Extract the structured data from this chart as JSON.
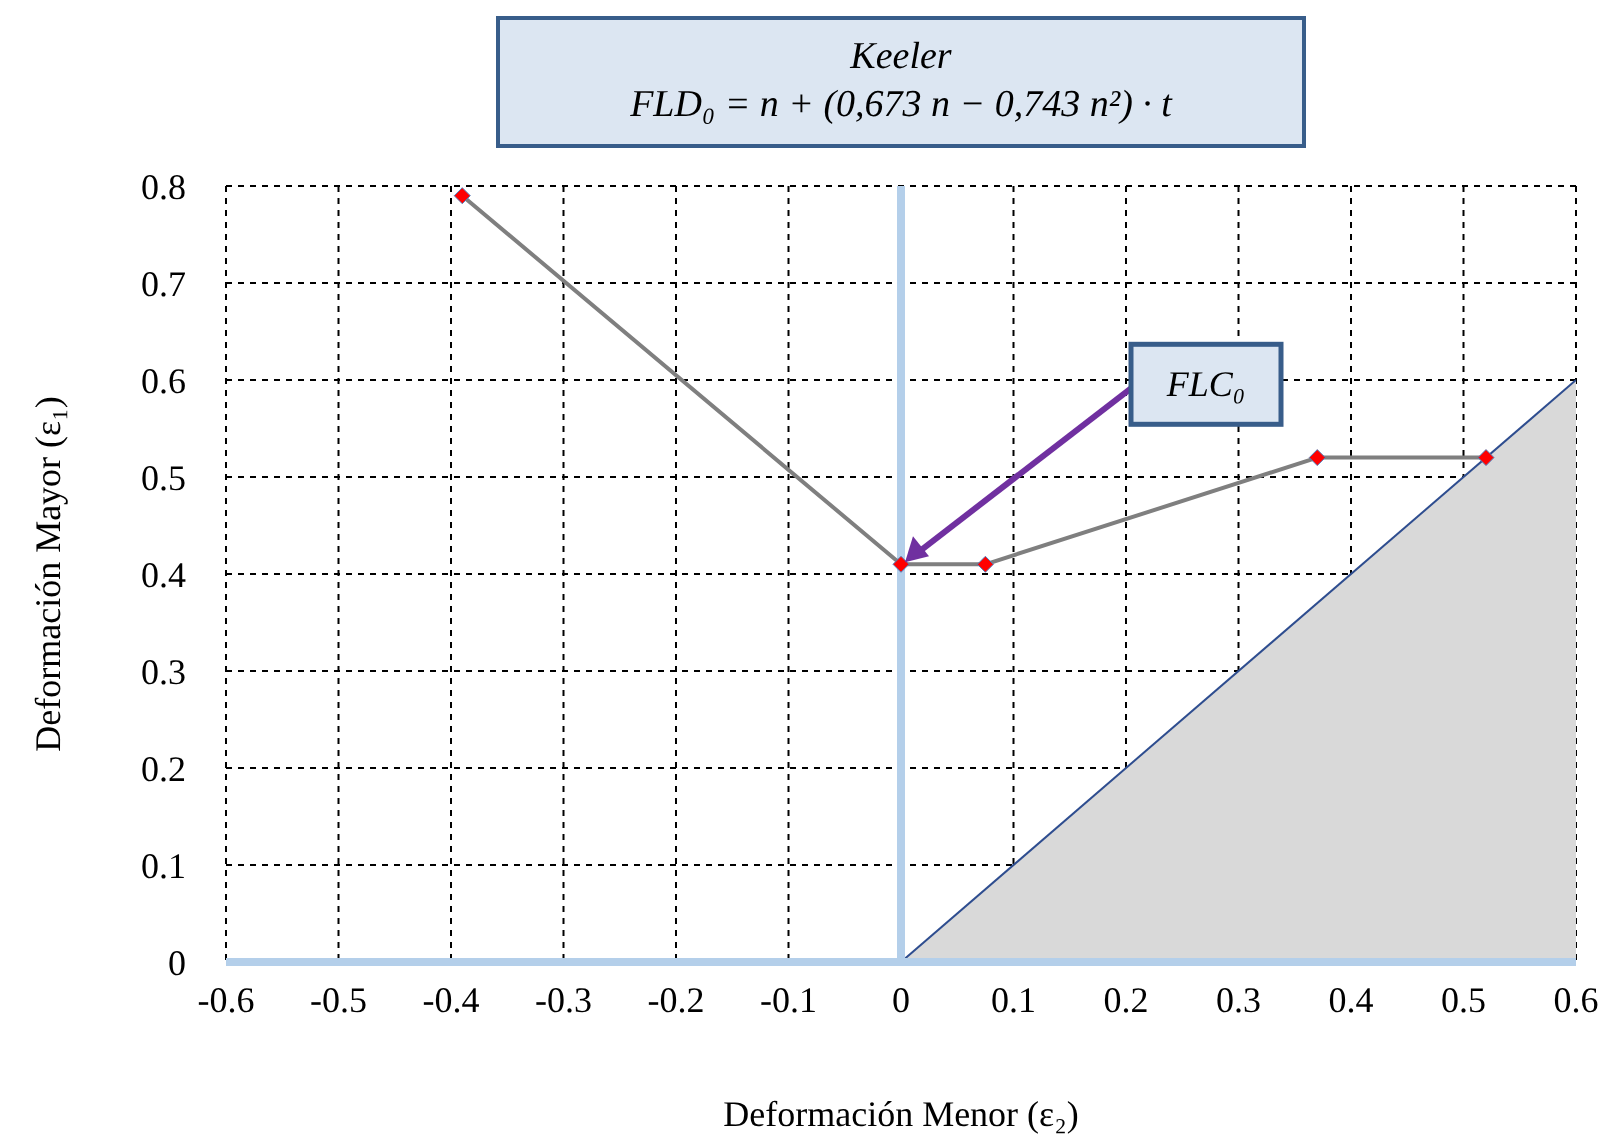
{
  "chart_data": {
    "type": "line",
    "title": "Keeler",
    "subtitle": "FLD₀ = n + (0,673 n − 0,743 n²) · t",
    "xlabel": "Deformación Menor (ε₂)",
    "ylabel": "Deformación Mayor (ε₁)",
    "series": [
      {
        "x": [
          -0.39,
          0,
          0.075,
          0.37,
          0.52
        ],
        "values": [
          0.79,
          0.41,
          0.41,
          0.52,
          0.52
        ],
        "color": "#7f7f7f",
        "marker": "diamond",
        "colors": [
          "#ff0000",
          "#ff0000",
          "#ff0000",
          "#ff0000",
          "#ff0000"
        ]
      },
      {
        "type": "area",
        "x": [
          0,
          0.6
        ],
        "values": [
          0,
          0.6
        ],
        "color": "#d9d9d9"
      }
    ],
    "xlim": [
      -0.6,
      0.6
    ],
    "xticks": [
      -0.6,
      -0.5,
      -0.4,
      -0.3,
      -0.2,
      -0.1,
      0,
      0.1,
      0.2,
      0.3,
      0.4,
      0.5,
      0.6
    ],
    "ylim": [
      0,
      0.8
    ],
    "yticks": [
      0,
      0.1,
      0.2,
      0.3,
      0.4,
      0.5,
      0.6,
      0.7,
      0.8
    ],
    "ref_lines": [
      {
        "axis": "x",
        "value": 0,
        "color": "#b4cfea"
      }
    ],
    "annotations": [
      {
        "text": "FLC₀",
        "x": 0,
        "y": 0.41
      }
    ],
    "grid": true,
    "line_style": "solid"
  }
}
